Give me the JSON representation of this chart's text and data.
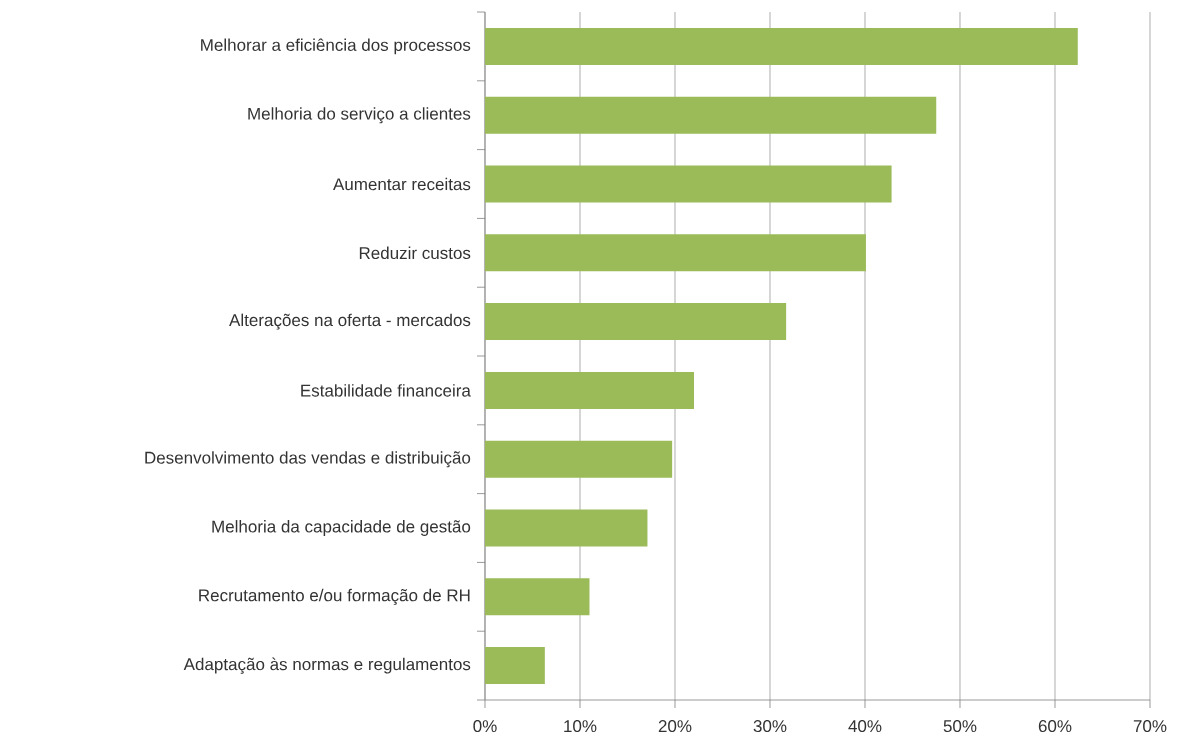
{
  "chart_data": {
    "type": "bar",
    "orientation": "horizontal",
    "categories": [
      "Melhorar a eficiência dos processos",
      "Melhoria do serviço a clientes",
      "Aumentar receitas",
      "Reduzir custos",
      "Alterações na oferta - mercados",
      "Estabilidade financeira",
      "Desenvolvimento das vendas e distribuição",
      "Melhoria da capacidade de gestão",
      "Recrutamento e/ou formação de RH",
      "Adaptação às normas e regulamentos"
    ],
    "values": [
      62.4,
      47.5,
      42.8,
      40.1,
      31.7,
      22.0,
      19.7,
      17.1,
      11.0,
      6.3
    ],
    "color": "#9bbb59",
    "xlim": [
      0,
      70
    ],
    "xticks": [
      {
        "value": 0,
        "label": "0%"
      },
      {
        "value": 10,
        "label": "10%"
      },
      {
        "value": 20,
        "label": "20%"
      },
      {
        "value": 30,
        "label": "30%"
      },
      {
        "value": 40,
        "label": "40%"
      },
      {
        "value": 50,
        "label": "50%"
      },
      {
        "value": 60,
        "label": "60%"
      },
      {
        "value": 70,
        "label": "70%"
      }
    ],
    "grid": "x"
  }
}
